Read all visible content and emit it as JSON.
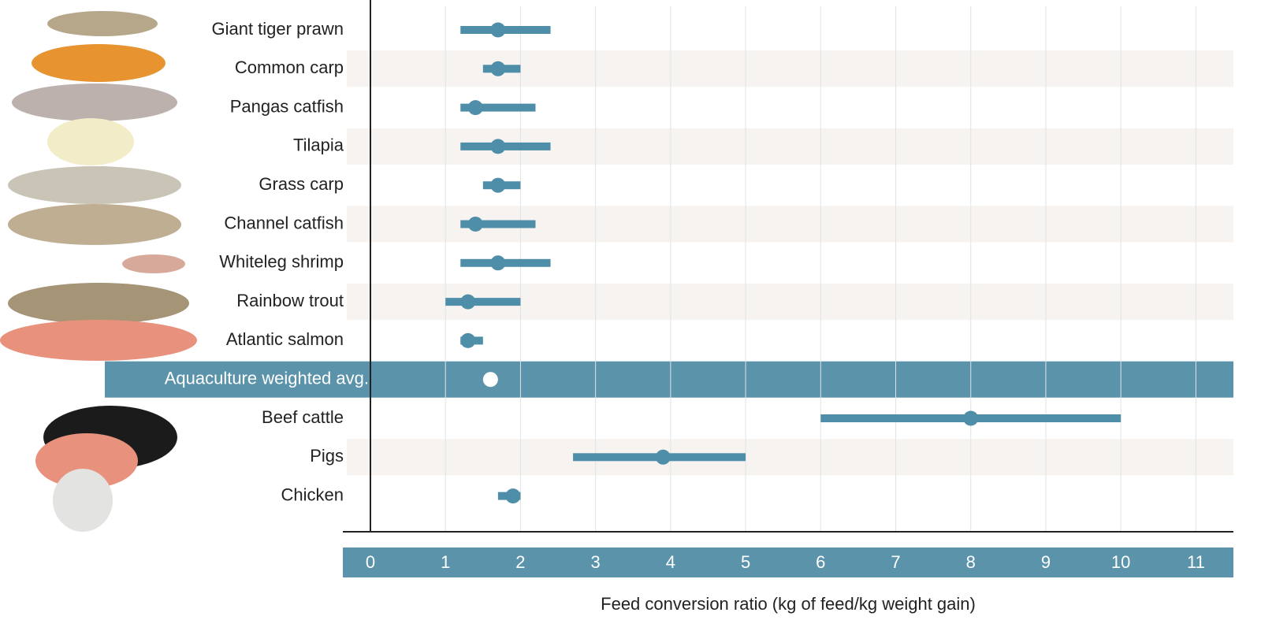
{
  "chart_data": {
    "type": "range-dot",
    "x_label": "Feed conversion ratio (kg of feed/kg weight gain)",
    "categories": [
      "Giant tiger prawn",
      "Common carp",
      "Pangas catfish",
      "Tilapia",
      "Grass carp",
      "Channel catfish",
      "Whiteleg shrimp",
      "Rainbow trout",
      "Atlantic salmon",
      "Aquaculture weighted avg.",
      "Beef cattle",
      "Pigs",
      "Chicken"
    ],
    "values": [
      1.7,
      1.7,
      1.4,
      1.7,
      1.7,
      1.4,
      1.7,
      1.3,
      1.3,
      1.6,
      8,
      3.9,
      1.9
    ],
    "low": [
      1.2,
      1.5,
      1.2,
      1.2,
      1.5,
      1.2,
      1.2,
      1.0,
      1.2,
      null,
      6,
      2.7,
      1.7
    ],
    "high": [
      2.4,
      2.0,
      2.2,
      2.4,
      2.0,
      2.2,
      2.4,
      2.0,
      1.5,
      null,
      10,
      5.0,
      2.0
    ],
    "color": "#4f8ea8",
    "xlim": [
      0,
      11.5
    ],
    "xticks": [
      0,
      1,
      2,
      3,
      4,
      5,
      6,
      7,
      8,
      9,
      10,
      11
    ],
    "grid": true
  }
}
